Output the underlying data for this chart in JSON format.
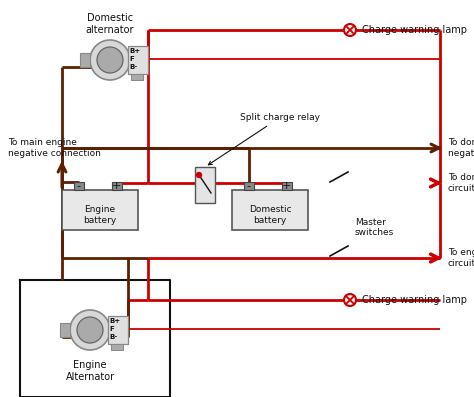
{
  "bg": "#ffffff",
  "red": "#cc0000",
  "brown": "#5c2000",
  "black": "#111111",
  "dgray": "#888888",
  "mgray": "#aaaaaa",
  "lgray": "#d8d8d8",
  "alt_fill": "#d4d4d4",
  "bat_fill": "#e8e8e8",
  "texts": {
    "dom_alt": "Domestic\nalternator",
    "eng_alt": "Engine\nAlternator",
    "eng_bat": "Engine\nbattery",
    "dom_bat": "Domestic\nbattery",
    "relay": "Split charge relay",
    "to_neg": "To main engine\nnegative connection",
    "lamp_top": "Charge warning lamp",
    "lamp_bot": "Charge warning lamp",
    "dom_neg_bus": "To domestic\nnegative busbar",
    "dom_circ": "To domestic\ncircuits",
    "eng_circ": "To engine\ncircuits",
    "master_sw": "Master\nswitches",
    "Bplus": "B+",
    "F": "F",
    "Bminus": "B-"
  },
  "lw": 2.0,
  "lw_t": 1.3
}
